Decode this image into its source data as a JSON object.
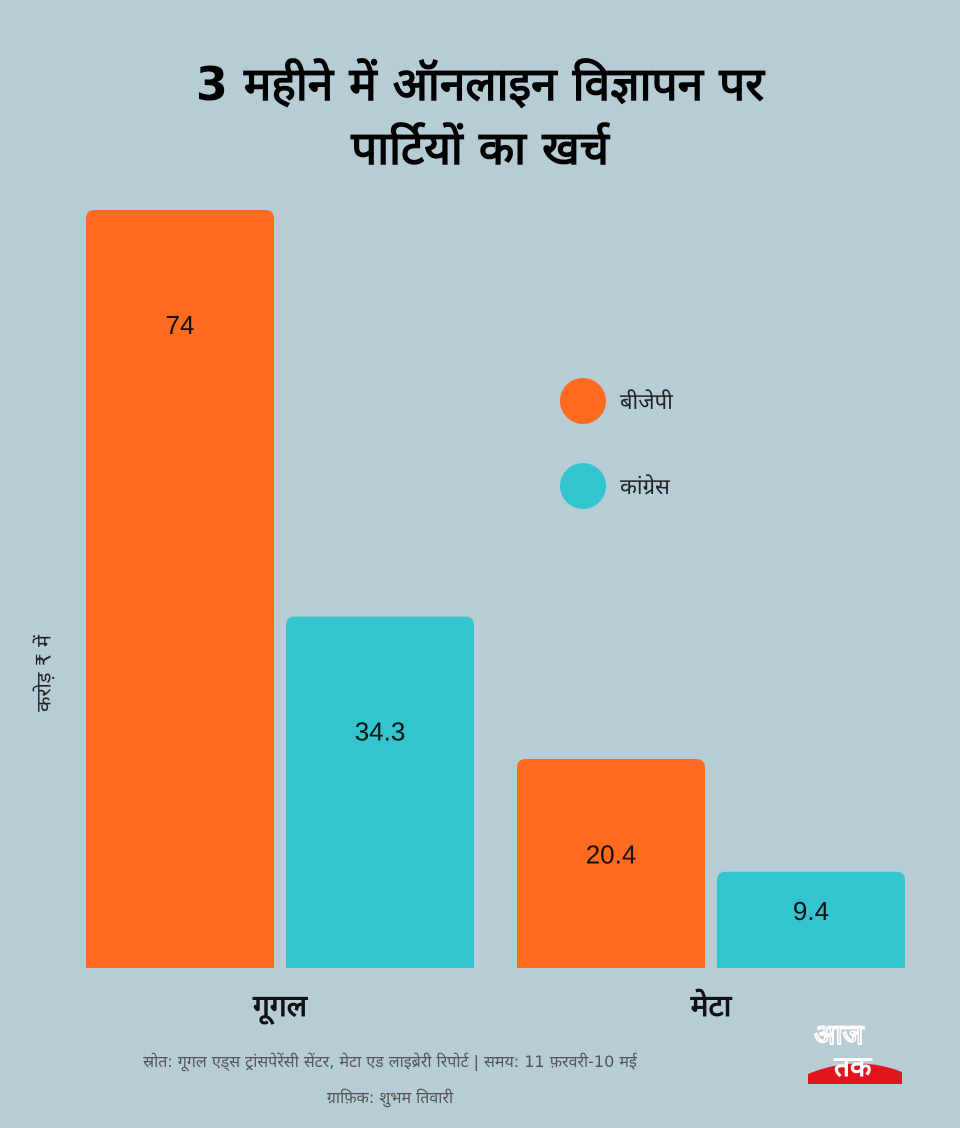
{
  "title_lines": [
    "3 महीने में ऑनलाइन विज्ञापन पर",
    "पार्टियों का खर्च"
  ],
  "chart_data": {
    "type": "bar",
    "categories": [
      "गूगल",
      "मेटा"
    ],
    "series": [
      {
        "name": "बीजेपी",
        "color": "#ff6a21",
        "values": [
          74,
          20.4
        ]
      },
      {
        "name": "कांग्रेस",
        "color": "#33c4cd",
        "values": [
          34.3,
          9.4
        ]
      }
    ],
    "ylabel": "करोड़ ₹ में",
    "ylim": [
      0,
      74
    ],
    "grid": false,
    "legend_position": "right"
  },
  "source": "स्रोत: गूगल एड्स ट्रांसपेरेंसी सेंटर, मेटा एड लाइब्रेरी रिपोर्ट | समय: 11 फ़रवरी-10 मई",
  "credit": "ग्राफ़िक: शुभम तिवारी",
  "logo": {
    "line1": "आज",
    "line2": "तक",
    "color": "#e3141b"
  }
}
